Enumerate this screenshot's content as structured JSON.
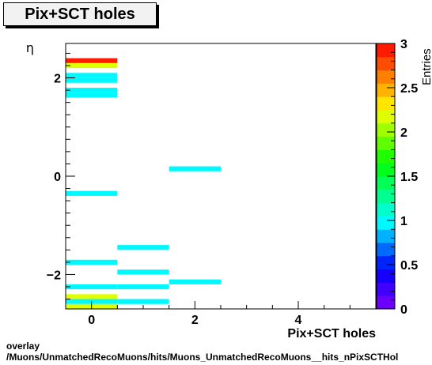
{
  "chart_data": {
    "type": "heatmap",
    "title": "Pix+SCT holes",
    "xlabel": "Pix+SCT holes",
    "ylabel": "η",
    "zlabel": "Entries",
    "xlim": [
      -0.5,
      5.5
    ],
    "ylim": [
      -2.7,
      2.7
    ],
    "zlim": [
      0,
      3
    ],
    "x_ticks": [
      0,
      2,
      4
    ],
    "y_ticks": [
      -2,
      0,
      2
    ],
    "z_ticks": [
      0,
      0.5,
      1,
      1.5,
      2,
      2.5,
      3
    ],
    "x_tick_labels": [
      "0",
      "2",
      "4"
    ],
    "y_tick_labels": [
      "−2",
      "0",
      "2"
    ],
    "z_tick_labels": [
      "0",
      "0.5",
      "1",
      "1.5",
      "2",
      "2.5",
      "3"
    ],
    "x_bin_width": 1,
    "y_bin_width": 0.1,
    "bins": [
      {
        "x": 0,
        "y": 2.35,
        "z": 3
      },
      {
        "x": 0,
        "y": 2.25,
        "z": 2.2
      },
      {
        "x": 0,
        "y": 2.05,
        "z": 1
      },
      {
        "x": 0,
        "y": 1.95,
        "z": 1
      },
      {
        "x": 0,
        "y": 1.75,
        "z": 1
      },
      {
        "x": 0,
        "y": 1.65,
        "z": 1
      },
      {
        "x": 0,
        "y": -0.35,
        "z": 1
      },
      {
        "x": 0,
        "y": -1.75,
        "z": 1
      },
      {
        "x": 0,
        "y": -2.25,
        "z": 1
      },
      {
        "x": 0,
        "y": -2.45,
        "z": 2.2
      },
      {
        "x": 0,
        "y": -2.55,
        "z": 1
      },
      {
        "x": 0,
        "y": -2.65,
        "z": 2.2
      },
      {
        "x": 1,
        "y": -1.45,
        "z": 1
      },
      {
        "x": 1,
        "y": -1.95,
        "z": 1
      },
      {
        "x": 1,
        "y": -2.25,
        "z": 1
      },
      {
        "x": 1,
        "y": -2.55,
        "z": 1
      },
      {
        "x": 2,
        "y": 0.15,
        "z": 1
      },
      {
        "x": 2,
        "y": -2.15,
        "z": 1
      }
    ]
  },
  "footer": {
    "line1": "overlay",
    "line2": "/Muons/UnmatchedRecoMuons/hits/Muons_UnmatchedRecoMuons__hits_nPixSCTHol"
  }
}
